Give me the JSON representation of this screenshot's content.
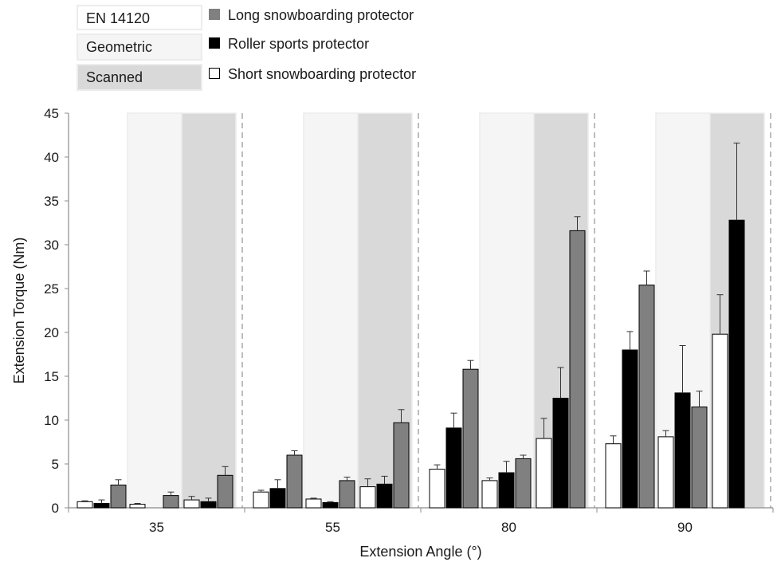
{
  "condition_boxes": [
    {
      "label": "EN 14120"
    },
    {
      "label": "Geometric"
    },
    {
      "label": "Scanned"
    }
  ],
  "legend": [
    {
      "label": "Long snowboarding protector",
      "color": "#808080"
    },
    {
      "label": "Roller sports protector",
      "color": "#000000"
    },
    {
      "label": "Short snowboarding protector",
      "color": "#ffffff"
    }
  ],
  "chart_data": {
    "type": "bar",
    "title": "",
    "xlabel": "Extension Angle (°)",
    "ylabel": "Extension Torque (Nm)",
    "ylim": [
      0,
      45
    ],
    "yticks": [
      0,
      5,
      10,
      15,
      20,
      25,
      30,
      35,
      40,
      45
    ],
    "categories": [
      "35",
      "55",
      "80",
      "90"
    ],
    "conditions": [
      "EN 14120",
      "Geometric",
      "Scanned"
    ],
    "condition_background_colors": [
      "#ffffff",
      "#f5f5f5",
      "#d9d9d9"
    ],
    "series": [
      {
        "name": "Short snowboarding protector",
        "color": "#ffffff",
        "values": [
          [
            0.7,
            0.4,
            0.9
          ],
          [
            1.8,
            1.0,
            2.4
          ],
          [
            4.4,
            3.1,
            7.9
          ],
          [
            7.3,
            8.1,
            19.8
          ]
        ],
        "errors": [
          [
            0.1,
            0.1,
            0.4
          ],
          [
            0.2,
            0.1,
            0.9
          ],
          [
            0.5,
            0.3,
            2.3
          ],
          [
            0.9,
            0.7,
            4.5
          ]
        ]
      },
      {
        "name": "Roller sports protector",
        "color": "#000000",
        "values": [
          [
            0.5,
            null,
            0.7
          ],
          [
            2.2,
            0.6,
            2.7
          ],
          [
            9.1,
            4.0,
            12.5
          ],
          [
            18.0,
            13.1,
            32.8
          ]
        ],
        "errors": [
          [
            0.4,
            null,
            0.4
          ],
          [
            1.0,
            0.1,
            0.9
          ],
          [
            1.7,
            1.3,
            3.5
          ],
          [
            2.1,
            5.4,
            8.8
          ]
        ]
      },
      {
        "name": "Long snowboarding protector",
        "color": "#808080",
        "values": [
          [
            2.6,
            1.4,
            3.7
          ],
          [
            6.0,
            3.1,
            9.7
          ],
          [
            15.8,
            5.6,
            31.6
          ],
          [
            25.4,
            11.5,
            null
          ]
        ],
        "errors": [
          [
            0.6,
            0.4,
            1.0
          ],
          [
            0.5,
            0.4,
            1.5
          ],
          [
            1.0,
            0.4,
            1.6
          ],
          [
            1.6,
            1.8,
            null
          ]
        ]
      }
    ],
    "grid": false,
    "legend_position": "top-left"
  }
}
